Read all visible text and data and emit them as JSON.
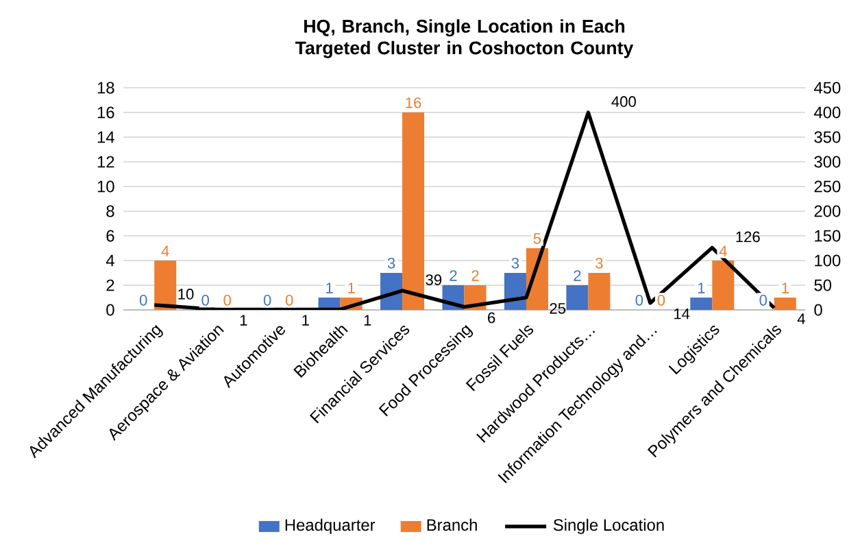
{
  "chart_data": {
    "type": "bar",
    "title": "HQ, Branch, Single Location in Each Targeted Cluster in Coshocton County",
    "categories": [
      "Advanced Manufacturing",
      "Aerospace & Aviation",
      "Automotive",
      "Biohealth",
      "Financial Services",
      "Food Processing",
      "Fossil Fuels",
      "Hardwood Products…",
      "Information Technology and…",
      "Logistics",
      "Polymers and Chemicals"
    ],
    "series": [
      {
        "name": "Headquarter",
        "type": "bar",
        "color": "#4472c4",
        "values": [
          0,
          0,
          0,
          1,
          3,
          2,
          3,
          2,
          0,
          1,
          0
        ]
      },
      {
        "name": "Branch",
        "type": "bar",
        "color": "#ed7d31",
        "values": [
          4,
          0,
          0,
          1,
          16,
          2,
          5,
          3,
          0,
          4,
          1
        ]
      },
      {
        "name": "Single Location",
        "type": "line",
        "axis": "y2",
        "color": "#000000",
        "values": [
          10,
          1,
          1,
          1,
          39,
          6,
          25,
          400,
          14,
          126,
          4
        ]
      }
    ],
    "ylim": [
      0,
      18
    ],
    "yticks": [
      0,
      2,
      4,
      6,
      8,
      10,
      12,
      14,
      16,
      18
    ],
    "y2lim": [
      0,
      450
    ],
    "y2ticks": [
      0,
      50,
      100,
      150,
      200,
      250,
      300,
      350,
      400,
      450
    ],
    "grid": "y",
    "legend": "bottom",
    "data_labels": true
  }
}
